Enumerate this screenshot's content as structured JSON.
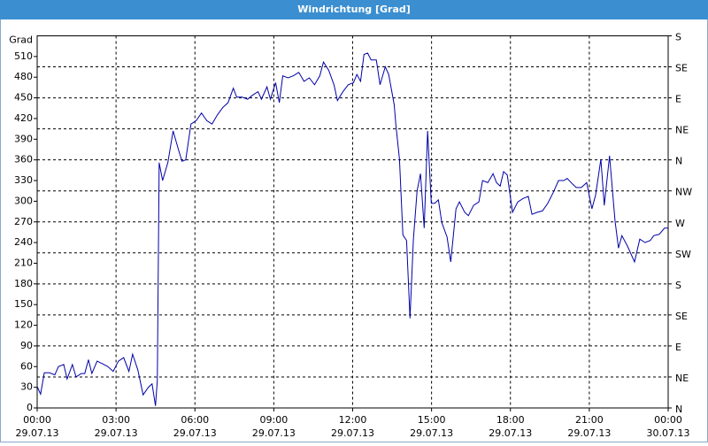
{
  "chart_data": {
    "type": "line",
    "title": "Windrichtung [Grad]",
    "y_label": "Grad",
    "xlim": [
      0,
      24
    ],
    "xticks": [
      {
        "value": 0,
        "label": "00:00"
      },
      {
        "value": 3,
        "label": "03:00"
      },
      {
        "value": 6,
        "label": "06:00"
      },
      {
        "value": 9,
        "label": "09:00"
      },
      {
        "value": 12,
        "label": "12:00"
      },
      {
        "value": 15,
        "label": "15:00"
      },
      {
        "value": 18,
        "label": "18:00"
      },
      {
        "value": 21,
        "label": "21:00"
      },
      {
        "value": 24,
        "label": "00:00"
      }
    ],
    "xtick_dates": [
      "29.07.13",
      "29.07.13",
      "29.07.13",
      "29.07.13",
      "29.07.13",
      "29.07.13",
      "29.07.13",
      "29.07.13",
      "30.07.13"
    ],
    "ylim": [
      0,
      540
    ],
    "yticks": [
      0,
      30,
      60,
      90,
      120,
      150,
      180,
      210,
      240,
      270,
      300,
      330,
      360,
      390,
      420,
      450,
      480,
      510
    ],
    "y2lim": [
      0,
      540
    ],
    "y2ticks": [
      {
        "value": 0,
        "label": "N"
      },
      {
        "value": 45,
        "label": "NE"
      },
      {
        "value": 90,
        "label": "E"
      },
      {
        "value": 135,
        "label": "SE"
      },
      {
        "value": 180,
        "label": "S"
      },
      {
        "value": 225,
        "label": "SW"
      },
      {
        "value": 270,
        "label": "W"
      },
      {
        "value": 315,
        "label": "NW"
      },
      {
        "value": 360,
        "label": "N"
      },
      {
        "value": 405,
        "label": "NE"
      },
      {
        "value": 450,
        "label": "E"
      },
      {
        "value": 495,
        "label": "SE"
      },
      {
        "value": 540,
        "label": "S"
      }
    ],
    "grid": true,
    "x": [
      0,
      0.13,
      0.27,
      0.47,
      0.67,
      0.81,
      1.01,
      1.14,
      1.34,
      1.48,
      1.68,
      1.81,
      1.95,
      2.08,
      2.28,
      2.49,
      2.69,
      2.89,
      3.09,
      3.29,
      3.49,
      3.63,
      3.83,
      4.03,
      4.23,
      4.37,
      4.5,
      4.57,
      4.64,
      4.77,
      4.97,
      5.17,
      5.38,
      5.51,
      5.65,
      5.85,
      6.05,
      6.25,
      6.45,
      6.65,
      6.85,
      7.06,
      7.26,
      7.46,
      7.59,
      7.8,
      8.0,
      8.2,
      8.4,
      8.53,
      8.74,
      8.87,
      9.07,
      9.21,
      9.34,
      9.54,
      9.74,
      9.95,
      10.15,
      10.35,
      10.55,
      10.75,
      10.89,
      11.09,
      11.29,
      11.42,
      11.63,
      11.83,
      12.03,
      12.16,
      12.3,
      12.43,
      12.57,
      12.7,
      12.9,
      13.04,
      13.24,
      13.37,
      13.58,
      13.64,
      13.78,
      13.91,
      14.05,
      14.18,
      14.31,
      14.45,
      14.58,
      14.72,
      14.85,
      14.99,
      15.12,
      15.26,
      15.39,
      15.59,
      15.73,
      15.93,
      16.06,
      16.26,
      16.4,
      16.6,
      16.8,
      16.94,
      17.14,
      17.34,
      17.47,
      17.61,
      17.74,
      17.88,
      18.08,
      18.28,
      18.48,
      18.68,
      18.82,
      19.02,
      19.22,
      19.42,
      19.62,
      19.83,
      20.03,
      20.16,
      20.36,
      20.5,
      20.7,
      20.9,
      21.1,
      21.24,
      21.44,
      21.57,
      21.77,
      21.98,
      22.11,
      22.24,
      22.45,
      22.72,
      22.92,
      23.12,
      23.32,
      23.45,
      23.66,
      23.86,
      23.99
    ],
    "series": [
      {
        "color": "#0000a8",
        "values": [
          31,
          20,
          51,
          51,
          48,
          60,
          63,
          42,
          63,
          45,
          50,
          50,
          70,
          50,
          68,
          64,
          60,
          53,
          68,
          73,
          53,
          78,
          55,
          19,
          30,
          35,
          3,
          40,
          356,
          330,
          356,
          402,
          374,
          358,
          360,
          412,
          417,
          428,
          417,
          412,
          425,
          436,
          443,
          464,
          451,
          451,
          448,
          454,
          459,
          448,
          466,
          448,
          472,
          443,
          482,
          479,
          482,
          487,
          474,
          479,
          469,
          482,
          502,
          490,
          469,
          446,
          459,
          469,
          472,
          484,
          474,
          513,
          515,
          505,
          505,
          469,
          495,
          484,
          440,
          412,
          361,
          251,
          243,
          130,
          245,
          315,
          340,
          261,
          402,
          297,
          297,
          302,
          269,
          248,
          212,
          289,
          299,
          284,
          279,
          294,
          299,
          330,
          327,
          340,
          327,
          322,
          343,
          338,
          284,
          299,
          304,
          307,
          281,
          284,
          286,
          297,
          312,
          330,
          330,
          333,
          325,
          320,
          320,
          327,
          289,
          309,
          361,
          294,
          366,
          271,
          232,
          250,
          235,
          212,
          245,
          240,
          243,
          250,
          252,
          261,
          261
        ]
      }
    ]
  }
}
